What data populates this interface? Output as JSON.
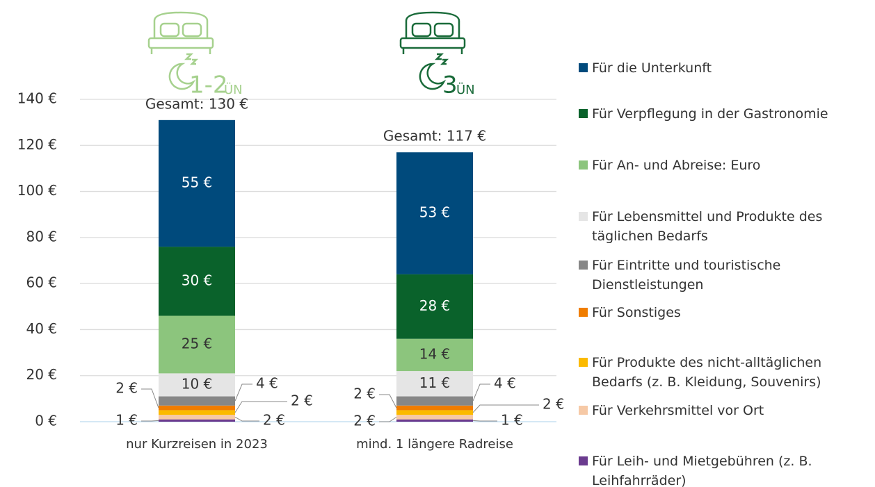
{
  "chart_data": {
    "type": "stacked_bar",
    "categories": [
      "nur Kurzreisen in 2023",
      "mind. 1 längere Radreise"
    ],
    "icon_labels": [
      {
        "nights": "1-2",
        "unit": "ÜN"
      },
      {
        "nights": "3",
        "unit": "ÜN"
      }
    ],
    "total_labels": [
      "Gesamt: 130 €",
      "Gesamt: 117 €"
    ],
    "series": [
      {
        "name": "Für Leih- und Mietgebühren (z. B. Leihfahrräder)",
        "color": "#6b3b8f",
        "values": [
          1,
          1
        ],
        "value_labels": [
          "1 €",
          "1 €"
        ]
      },
      {
        "name": "Für Verkehrsmittel vor Ort",
        "color": "#f6c9a6",
        "values": [
          2,
          2
        ],
        "value_labels": [
          "2 €",
          "2 €"
        ]
      },
      {
        "name": "Für Produkte des nicht-alltäglichen Bedarfs (z. B. Kleidung, Souvenirs)",
        "color": "#fbba00",
        "values": [
          2,
          2
        ],
        "value_labels": [
          "2 €",
          "2 €"
        ]
      },
      {
        "name": "Für Sonstiges",
        "color": "#f07d00",
        "values": [
          2,
          2
        ],
        "value_labels": [
          "2 €",
          "2 €"
        ]
      },
      {
        "name": "Für Eintritte und touristische Dienstleistungen",
        "color": "#878787",
        "values": [
          4,
          4
        ],
        "value_labels": [
          "4 €",
          "4 €"
        ]
      },
      {
        "name": "Für Lebensmittel und Produkte des täglichen Bedarfs",
        "color": "#e5e5e5",
        "values": [
          10,
          11
        ],
        "value_labels": [
          "10 €",
          "11 €"
        ]
      },
      {
        "name": "Für An- und Abreise: Euro",
        "color": "#8cc57d",
        "values": [
          25,
          14
        ],
        "value_labels": [
          "25 €",
          "14 €"
        ]
      },
      {
        "name": "Für Verpflegung in der Gastronomie",
        "color": "#0a622b",
        "values": [
          30,
          28
        ],
        "value_labels": [
          "30 €",
          "28 €"
        ]
      },
      {
        "name": "Für die Unterkunft",
        "color": "#004a7c",
        "values": [
          55,
          53
        ],
        "value_labels": [
          "55 €",
          "53 €"
        ]
      }
    ],
    "ylim": [
      0,
      140
    ],
    "yticks": [
      {
        "value": 0,
        "label": "0 €"
      },
      {
        "value": 20,
        "label": "20 €"
      },
      {
        "value": 40,
        "label": "40 €"
      },
      {
        "value": 60,
        "label": "60 €"
      },
      {
        "value": 80,
        "label": "80 €"
      },
      {
        "value": 100,
        "label": "100 €"
      },
      {
        "value": 120,
        "label": "120 €"
      },
      {
        "value": 140,
        "label": "140 €"
      }
    ],
    "grid": true
  }
}
